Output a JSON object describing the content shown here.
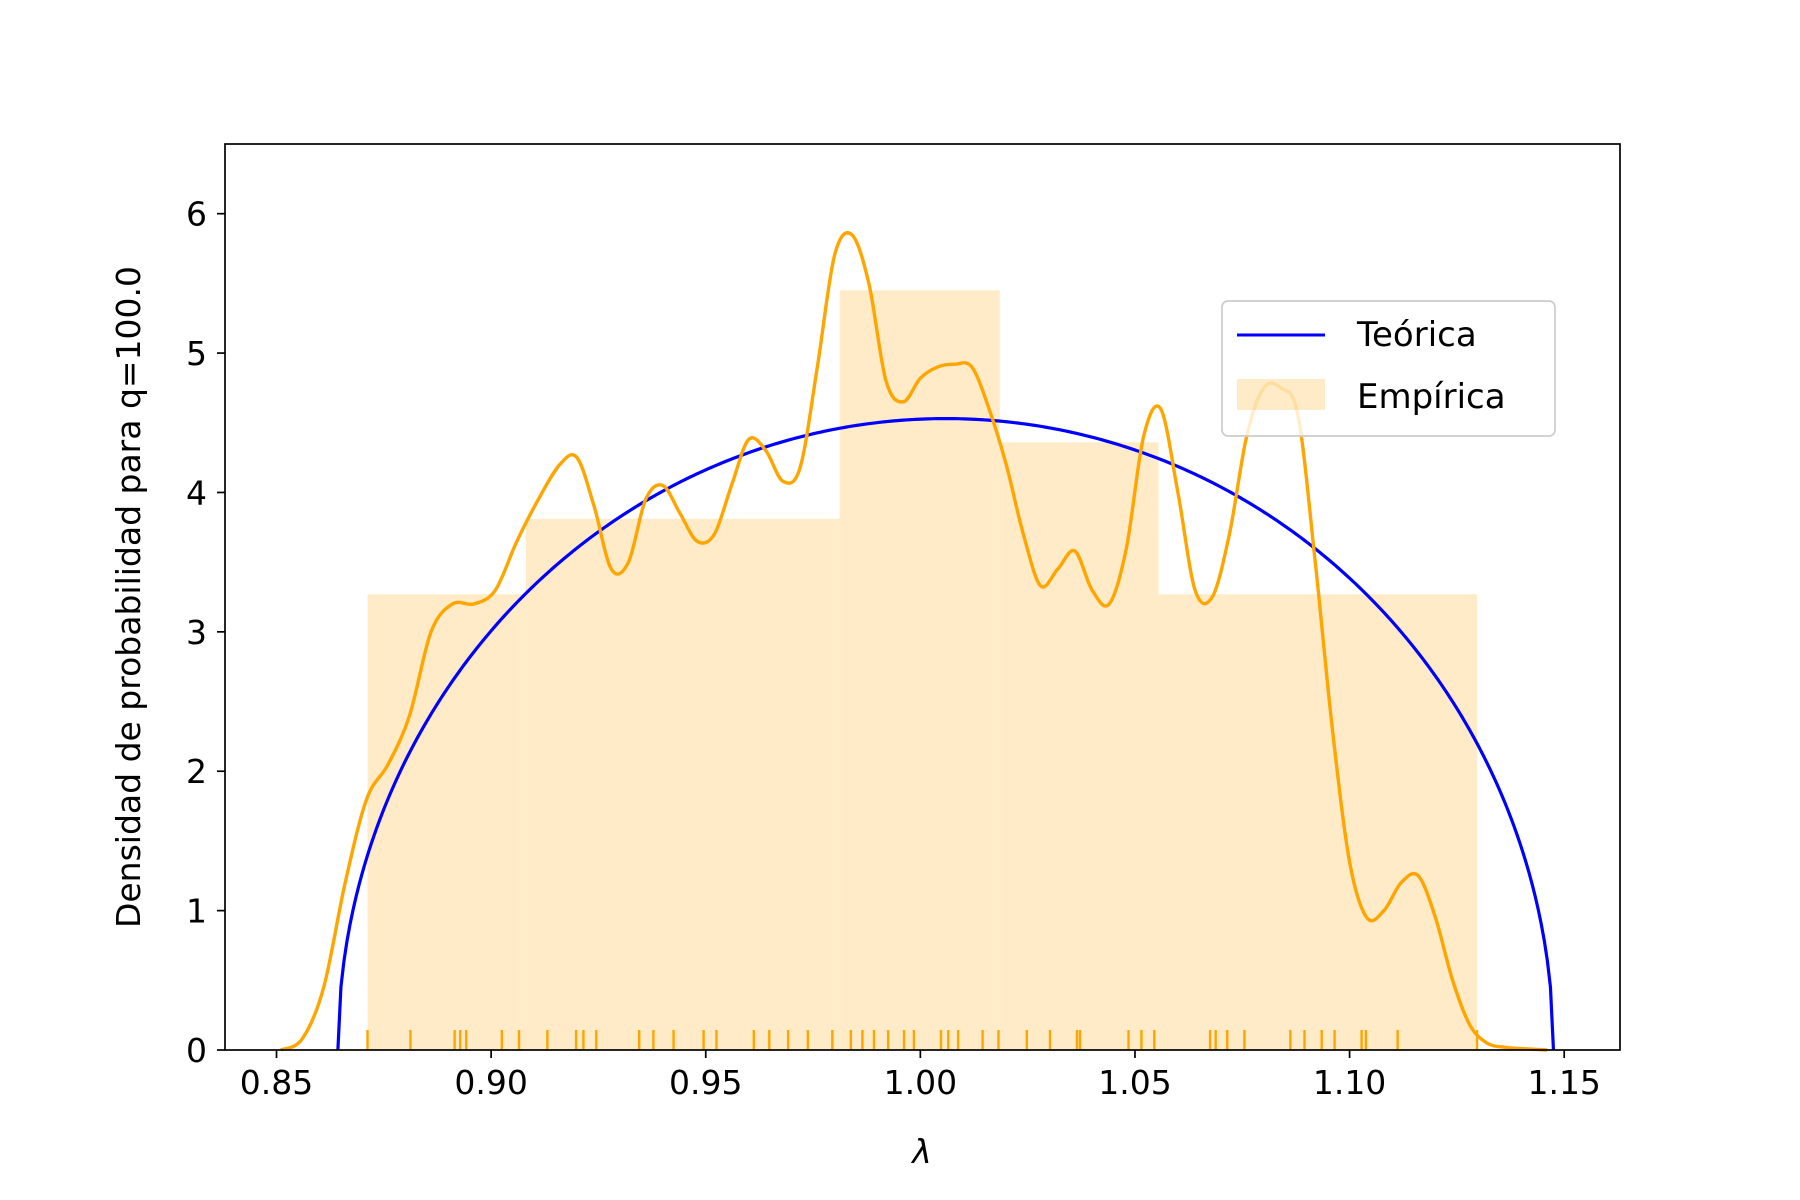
{
  "chart_data": {
    "type": "histogram-with-density",
    "xlabel": "λ",
    "ylabel": "Densidad de probabilidad para q=100.0",
    "xlim": [
      0.838,
      1.163
    ],
    "ylim": [
      0,
      6.5
    ],
    "xticks": [
      0.85,
      0.9,
      0.95,
      1.0,
      1.05,
      1.1,
      1.15
    ],
    "xtick_labels": [
      "0.85",
      "0.90",
      "0.95",
      "1.00",
      "1.05",
      "1.10",
      "1.15"
    ],
    "yticks": [
      0,
      1,
      2,
      3,
      4,
      5,
      6
    ],
    "ytick_labels": [
      "0",
      "1",
      "2",
      "3",
      "4",
      "5",
      "6"
    ],
    "grid": false,
    "legend": {
      "placement": "upper right",
      "entries": [
        {
          "label": "Teórica",
          "kind": "line",
          "color": "#0000ff"
        },
        {
          "label": "Empírica",
          "kind": "patch",
          "color": "#ffa500"
        }
      ]
    },
    "histogram": {
      "name": "Empírica",
      "color": "#ffa500",
      "alpha": 0.22,
      "bin_edges": [
        0.8712,
        0.9081,
        0.9812,
        1.0185,
        1.0555,
        1.1297
      ],
      "heights": [
        3.27,
        3.81,
        5.45,
        4.36,
        3.27
      ]
    },
    "theoretical": {
      "name": "Teórica",
      "color": "#0000ff",
      "x_min": 0.8643,
      "x_max": 1.1475,
      "peak": 4.53
    },
    "kde": {
      "name": "Empírica",
      "color": "#ffa500",
      "x": [
        0.851,
        0.856,
        0.861,
        0.866,
        0.871,
        0.876,
        0.881,
        0.886,
        0.891,
        0.896,
        0.901,
        0.906,
        0.911,
        0.916,
        0.92,
        0.924,
        0.928,
        0.932,
        0.936,
        0.94,
        0.944,
        0.948,
        0.952,
        0.956,
        0.96,
        0.964,
        0.968,
        0.972,
        0.976,
        0.98,
        0.984,
        0.988,
        0.992,
        0.996,
        1.0,
        1.004,
        1.008,
        1.012,
        1.016,
        1.02,
        1.024,
        1.028,
        1.032,
        1.036,
        1.04,
        1.044,
        1.048,
        1.052,
        1.056,
        1.06,
        1.064,
        1.068,
        1.072,
        1.076,
        1.08,
        1.084,
        1.088,
        1.092,
        1.096,
        1.1,
        1.104,
        1.108,
        1.112,
        1.116,
        1.12,
        1.124,
        1.128,
        1.132,
        1.136,
        1.14,
        1.146
      ],
      "y": [
        0.0,
        0.08,
        0.45,
        1.2,
        1.8,
        2.05,
        2.4,
        3.0,
        3.2,
        3.2,
        3.3,
        3.65,
        3.95,
        4.2,
        4.25,
        3.9,
        3.45,
        3.5,
        3.95,
        4.05,
        3.85,
        3.65,
        3.7,
        4.05,
        4.38,
        4.3,
        4.08,
        4.18,
        4.9,
        5.7,
        5.85,
        5.5,
        4.8,
        4.65,
        4.82,
        4.9,
        4.92,
        4.9,
        4.6,
        4.2,
        3.7,
        3.33,
        3.45,
        3.58,
        3.3,
        3.2,
        3.6,
        4.4,
        4.6,
        4.0,
        3.3,
        3.25,
        3.7,
        4.4,
        4.75,
        4.75,
        4.55,
        3.5,
        2.3,
        1.35,
        0.95,
        1.0,
        1.2,
        1.25,
        0.95,
        0.5,
        0.18,
        0.05,
        0.02,
        0.01,
        0.0
      ]
    },
    "rug": {
      "color": "#ffa500",
      "x": [
        0.8712,
        0.8812,
        0.8915,
        0.8928,
        0.8942,
        0.9025,
        0.9065,
        0.9131,
        0.9198,
        0.9215,
        0.9245,
        0.9345,
        0.9378,
        0.9425,
        0.9495,
        0.9525,
        0.9612,
        0.9648,
        0.9692,
        0.9738,
        0.9795,
        0.9838,
        0.9865,
        0.9892,
        0.9925,
        0.9962,
        0.9985,
        1.0048,
        1.0065,
        1.0088,
        1.0145,
        1.0182,
        1.0248,
        1.0302,
        1.0365,
        1.0372,
        1.0485,
        1.0515,
        1.0545,
        1.0675,
        1.0688,
        1.0715,
        1.0755,
        1.0862,
        1.0895,
        1.0935,
        1.0965,
        1.1028,
        1.1038,
        1.1112,
        1.1297
      ]
    }
  }
}
